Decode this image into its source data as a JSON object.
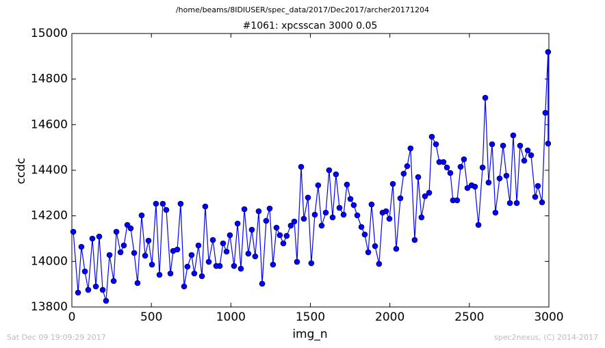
{
  "chart_data": {
    "type": "line",
    "suptitle": "/home/beams/8IDIUSER/spec_data/2017/Dec2017/archer20171204",
    "title": "#1061: xpcsscan 3000 0.05",
    "x_label": "img_n",
    "y_label": "ccdc",
    "footer_left": "Sat Dec 09 19:09:29 2017",
    "footer_right": "spec2nexus, (C) 2014-2017",
    "xlim": [
      0,
      3000
    ],
    "xticks": [
      0,
      500,
      1000,
      1500,
      2000,
      2500,
      3000
    ],
    "ylim": [
      13800,
      15000
    ],
    "yticks": [
      13800,
      14000,
      14200,
      14400,
      14600,
      14800,
      15000
    ],
    "grid": false,
    "series": [
      {
        "color": "#0000ff",
        "x": [
          9,
          39,
          60,
          82,
          103,
          129,
          151,
          172,
          194,
          215,
          237,
          263,
          280,
          306,
          327,
          349,
          370,
          392,
          413,
          439,
          461,
          482,
          504,
          529,
          551,
          572,
          594,
          620,
          637,
          663,
          684,
          706,
          727,
          753,
          770,
          796,
          818,
          839,
          861,
          887,
          908,
          930,
          951,
          973,
          994,
          1020,
          1042,
          1063,
          1085,
          1110,
          1132,
          1153,
          1175,
          1197,
          1222,
          1244,
          1265,
          1287,
          1308,
          1330,
          1351,
          1377,
          1399,
          1416,
          1442,
          1459,
          1485,
          1506,
          1528,
          1549,
          1571,
          1597,
          1618,
          1640,
          1661,
          1683,
          1709,
          1730,
          1752,
          1773,
          1795,
          1821,
          1842,
          1864,
          1885,
          1907,
          1932,
          1954,
          1976,
          1997,
          2019,
          2040,
          2066,
          2087,
          2109,
          2130,
          2156,
          2178,
          2199,
          2221,
          2247,
          2264,
          2290,
          2311,
          2337,
          2359,
          2380,
          2397,
          2423,
          2445,
          2466,
          2488,
          2514,
          2535,
          2557,
          2583,
          2600,
          2621,
          2643,
          2664,
          2690,
          2712,
          2733,
          2755,
          2776,
          2798,
          2819,
          2845,
          2867,
          2888,
          2914,
          2931,
          2957,
          2978,
          2995,
          2995
        ],
        "values": [
          14130,
          13863,
          14064,
          13956,
          13875,
          14100,
          13890,
          14109,
          13875,
          13827,
          14028,
          13914,
          14130,
          14040,
          14070,
          14160,
          14145,
          14037,
          13905,
          14202,
          14025,
          14091,
          13986,
          14253,
          13941,
          14253,
          14226,
          13947,
          14046,
          14052,
          14253,
          13890,
          13977,
          14028,
          13947,
          14070,
          13935,
          14241,
          13998,
          14094,
          13980,
          13980,
          14079,
          14043,
          14115,
          13980,
          14166,
          13968,
          14229,
          14034,
          14139,
          14022,
          14220,
          13902,
          14178,
          14232,
          13986,
          14148,
          14115,
          14079,
          14112,
          14157,
          14175,
          13998,
          14415,
          14187,
          14280,
          13992,
          14205,
          14334,
          14157,
          14214,
          14400,
          14193,
          14382,
          14235,
          14205,
          14337,
          14274,
          14247,
          14202,
          14151,
          14118,
          14040,
          14250,
          14067,
          13989,
          14214,
          14220,
          14187,
          14340,
          14055,
          14277,
          14385,
          14418,
          14496,
          14094,
          14370,
          14193,
          14286,
          14301,
          14547,
          14514,
          14436,
          14436,
          14412,
          14388,
          14268,
          14268,
          14415,
          14448,
          14322,
          14334,
          14328,
          14160,
          14412,
          14718,
          14346,
          14514,
          14214,
          14364,
          14508,
          14376,
          14256,
          14553,
          14256,
          14508,
          14442,
          14487,
          14466,
          14283,
          14331,
          14259,
          14652,
          14919,
          14517
        ]
      }
    ]
  }
}
